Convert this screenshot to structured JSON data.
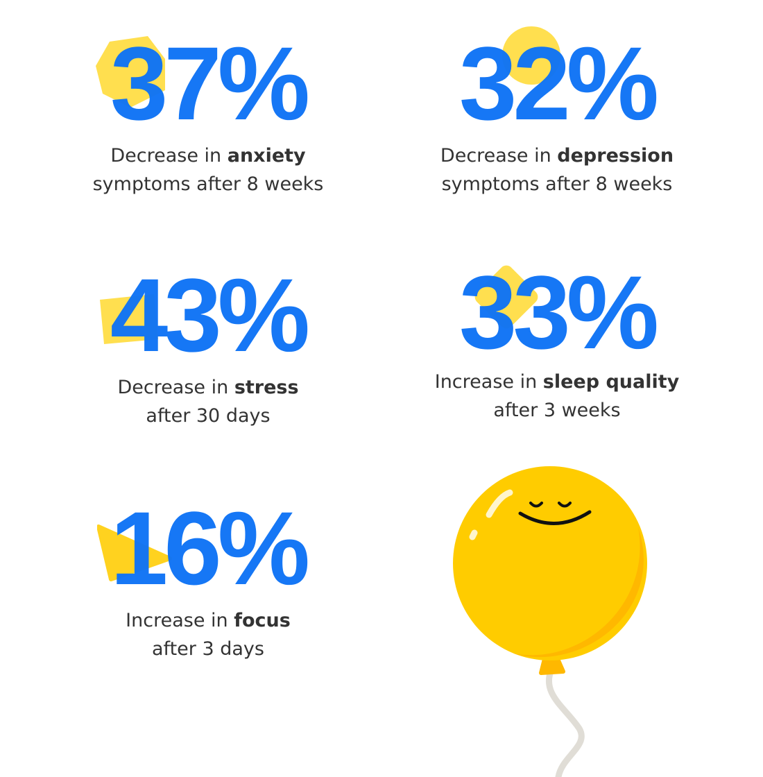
{
  "colors": {
    "accent_blue": "#0f73f5",
    "yellow": "#ffd833",
    "balloon": "#ffcc00",
    "balloon_shade": "#ffb800",
    "text": "#333333"
  },
  "stats": [
    {
      "value": "37%",
      "prefix": "Decrease in ",
      "bold": "anxiety",
      "line2": "symptoms after 8 weeks",
      "shape": "hexagon"
    },
    {
      "value": "32%",
      "prefix": "Decrease in ",
      "bold": "depression",
      "line2": "symptoms after 8 weeks",
      "shape": "circle"
    },
    {
      "value": "43%",
      "prefix": "Decrease in ",
      "bold": "stress",
      "line2": "after 30 days",
      "shape": "square"
    },
    {
      "value": "33%",
      "prefix": "Increase in ",
      "bold": "sleep quality",
      "line2": "after 3 weeks",
      "shape": "diamond"
    },
    {
      "value": "16%",
      "prefix": "Increase in ",
      "bold": "focus",
      "line2": "after 3 days",
      "shape": "triangle"
    }
  ],
  "illustration": "smiling-balloon"
}
